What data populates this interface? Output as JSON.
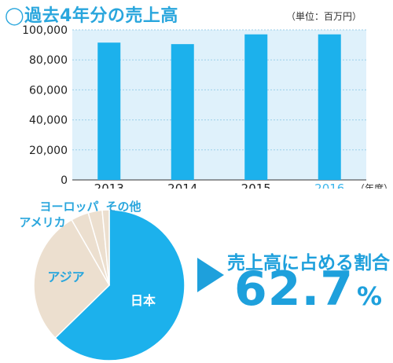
{
  "page": {
    "title": "◯過去4年分の売上高",
    "unit_note": "（単位：百万円）",
    "share_heading": "売上高に占める割合",
    "share_value": "62.7",
    "share_suffix": "%"
  },
  "colors": {
    "accent": "#29a6dd",
    "bar": "#1cb1ec",
    "plot_bg": "#dff1fb",
    "highlight_tick": "#3cb6ec",
    "pie_main": "#1cb1ec",
    "pie_other": "#ecdfcf",
    "arrow": "#1ea0dc"
  },
  "chart_data": [
    {
      "type": "bar",
      "categories": [
        "2013",
        "2014",
        "2015",
        "2016"
      ],
      "values": [
        91500,
        90500,
        97000,
        97000
      ],
      "highlighted_category": "2016",
      "y_ticks": [
        0,
        20000,
        40000,
        60000,
        80000,
        100000
      ],
      "y_tick_labels": [
        "0",
        "20,000",
        "40,000",
        "60,000",
        "80,000",
        "100,000"
      ],
      "ylim": [
        0,
        100000
      ],
      "xlabel": "（年度）",
      "grid": true
    },
    {
      "type": "pie",
      "labels": [
        "日本",
        "アジア",
        "アメリカ",
        "ヨーロッパ",
        "その他"
      ],
      "values": [
        62.7,
        29.0,
        3.8,
        3.0,
        1.5
      ],
      "label_color_inside": "#ffffff",
      "label_color_outside": "#29a6dd"
    }
  ]
}
